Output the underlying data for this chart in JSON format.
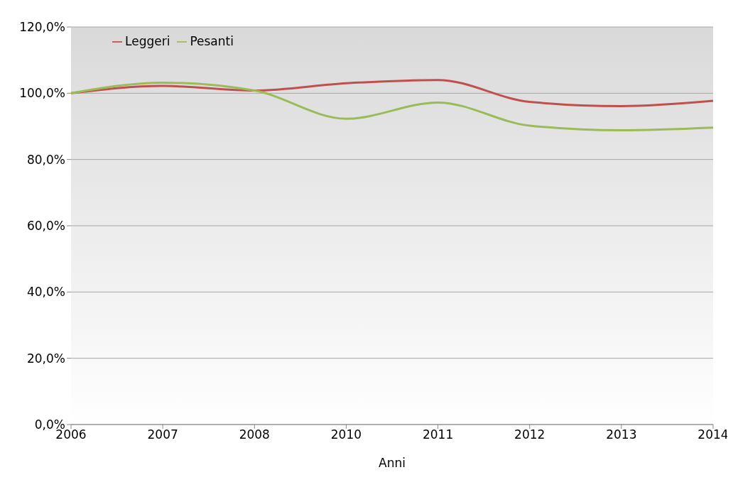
{
  "chart_data": {
    "type": "line",
    "xlabel": "Anni",
    "categories": [
      "2006",
      "2007",
      "2008",
      "2010",
      "2011",
      "2012",
      "2013",
      "2014"
    ],
    "series": [
      {
        "name": "Leggeri",
        "color": "#c0504d",
        "values": [
          100,
          102.2,
          100.8,
          103,
          104,
          97.4,
          96.1,
          97.7
        ]
      },
      {
        "name": "Pesanti",
        "color": "#9bbb59",
        "values": [
          100,
          103.2,
          100.8,
          92.3,
          97.2,
          90.2,
          88.8,
          89.6
        ]
      }
    ],
    "ylim": [
      0,
      120
    ],
    "yticks": [
      {
        "value": 0,
        "label": "0,0%"
      },
      {
        "value": 20,
        "label": "20,0%"
      },
      {
        "value": 40,
        "label": "40,0%"
      },
      {
        "value": 60,
        "label": "60,0%"
      },
      {
        "value": 80,
        "label": "80,0%"
      },
      {
        "value": 100,
        "label": "100,0%"
      },
      {
        "value": 120,
        "label": "120,0%"
      }
    ],
    "grid": "y",
    "legend": "top left",
    "marker": "none",
    "line_style": "solid"
  }
}
